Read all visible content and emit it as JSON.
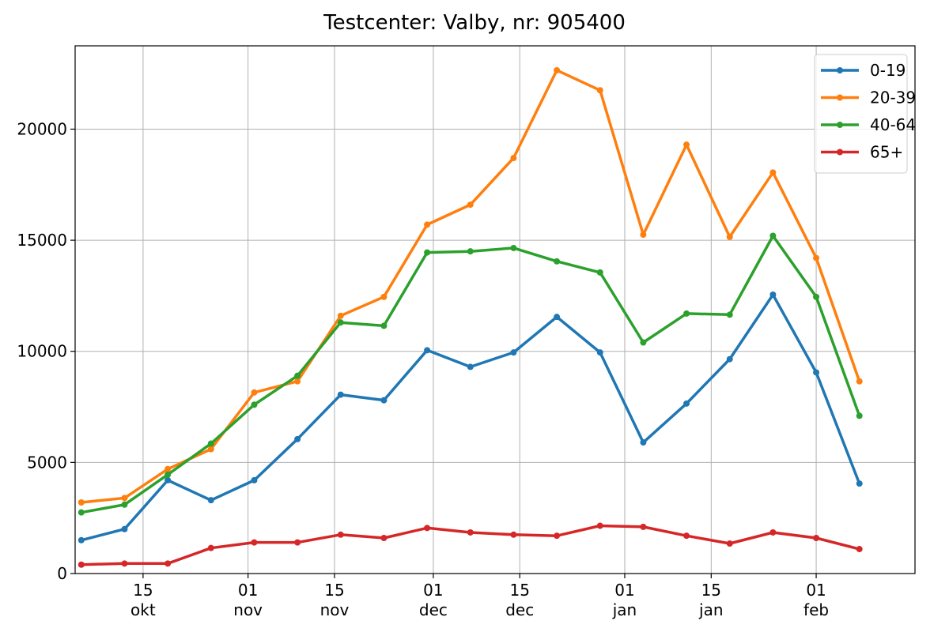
{
  "chart_data": {
    "type": "line",
    "title": "Testcenter: Valby, nr: 905400",
    "xlabel": "",
    "ylabel": "",
    "x": [
      "2020-10-05",
      "2020-10-12",
      "2020-10-19",
      "2020-10-26",
      "2020-11-02",
      "2020-11-09",
      "2020-11-16",
      "2020-11-23",
      "2020-11-30",
      "2020-12-07",
      "2020-12-14",
      "2020-12-21",
      "2020-12-28",
      "2021-01-04",
      "2021-01-11",
      "2021-01-18",
      "2021-01-25",
      "2021-02-01",
      "2021-02-08"
    ],
    "xlim": [
      "2020-10-04",
      "2021-02-17"
    ],
    "ylim": [
      0,
      23750
    ],
    "x_ticks": [
      {
        "date": "2020-10-15",
        "label": [
          "15",
          "okt"
        ]
      },
      {
        "date": "2020-11-01",
        "label": [
          "01",
          "nov"
        ]
      },
      {
        "date": "2020-11-15",
        "label": [
          "15",
          "nov"
        ]
      },
      {
        "date": "2020-12-01",
        "label": [
          "01",
          "dec"
        ]
      },
      {
        "date": "2020-12-15",
        "label": [
          "15",
          "dec"
        ]
      },
      {
        "date": "2021-01-01",
        "label": [
          "01",
          "jan"
        ]
      },
      {
        "date": "2021-01-15",
        "label": [
          "15",
          "jan"
        ]
      },
      {
        "date": "2021-02-01",
        "label": [
          "01",
          "feb"
        ]
      }
    ],
    "y_ticks": [
      0,
      5000,
      10000,
      15000,
      20000
    ],
    "grid": true,
    "legend_position": "top-right",
    "series": [
      {
        "name": "0-19",
        "color": "#1f77b4",
        "values": [
          1500,
          2000,
          4200,
          3300,
          4200,
          6050,
          8050,
          7800,
          10050,
          9300,
          9950,
          11550,
          9950,
          5900,
          7650,
          9650,
          12550,
          9050,
          4050
        ]
      },
      {
        "name": "20-39",
        "color": "#ff7f0e",
        "values": [
          3200,
          3400,
          4700,
          5600,
          8150,
          8650,
          11600,
          12450,
          15700,
          16600,
          18700,
          22650,
          21750,
          15250,
          19300,
          15150,
          18050,
          14200,
          8650
        ]
      },
      {
        "name": "40-64",
        "color": "#2ca02c",
        "values": [
          2750,
          3100,
          4450,
          5850,
          7600,
          8900,
          11300,
          11150,
          14450,
          14500,
          14650,
          14050,
          13550,
          10400,
          11700,
          11650,
          15200,
          12450,
          7100
        ]
      },
      {
        "name": "65+",
        "color": "#d62728",
        "values": [
          400,
          450,
          450,
          1150,
          1400,
          1400,
          1750,
          1600,
          2050,
          1850,
          1750,
          1700,
          2150,
          2100,
          1700,
          1350,
          1850,
          1600,
          1100
        ]
      }
    ]
  }
}
